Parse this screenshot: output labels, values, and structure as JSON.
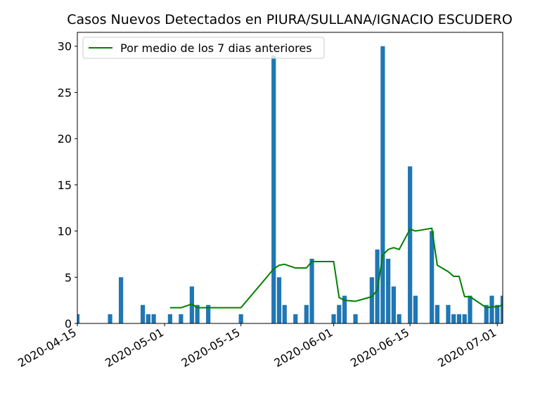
{
  "chart_data": {
    "type": "bar",
    "title": "Casos Nuevos Detectados en PIURA/SULLANA/IGNACIO ESCUDERO",
    "xlabel": "",
    "ylabel": "",
    "x_axis": {
      "type": "date",
      "range": [
        "2020-04-15",
        "2020-07-02"
      ],
      "ticks": [
        "2020-04-15",
        "2020-05-01",
        "2020-05-15",
        "2020-06-01",
        "2020-06-15",
        "2020-07-01"
      ],
      "tick_labels_rotated": true
    },
    "ylim": [
      0,
      31.5
    ],
    "y_ticks": [
      0,
      5,
      10,
      15,
      20,
      25,
      30
    ],
    "grid": false,
    "legend": {
      "placement": "top-left",
      "entries": [
        "Por medio de los 7 dias anteriores"
      ]
    },
    "colors": {
      "bars": "#1f77b4",
      "line": "#008000"
    },
    "series": [
      {
        "type": "bar",
        "x": [
          "2020-04-15",
          "2020-04-21",
          "2020-04-23",
          "2020-04-27",
          "2020-04-28",
          "2020-04-29",
          "2020-05-02",
          "2020-05-04",
          "2020-05-06",
          "2020-05-07",
          "2020-05-09",
          "2020-05-15",
          "2020-05-21",
          "2020-05-22",
          "2020-05-23",
          "2020-05-25",
          "2020-05-27",
          "2020-05-28",
          "2020-06-01",
          "2020-06-02",
          "2020-06-03",
          "2020-06-05",
          "2020-06-08",
          "2020-06-09",
          "2020-06-10",
          "2020-06-11",
          "2020-06-12",
          "2020-06-13",
          "2020-06-15",
          "2020-06-16",
          "2020-06-19",
          "2020-06-20",
          "2020-06-22",
          "2020-06-23",
          "2020-06-24",
          "2020-06-25",
          "2020-06-26",
          "2020-06-29",
          "2020-06-30",
          "2020-07-01",
          "2020-07-02"
        ],
        "values": [
          1,
          1,
          5,
          2,
          1,
          1,
          1,
          1,
          4,
          2,
          2,
          1,
          29,
          5,
          2,
          1,
          2,
          7,
          1,
          2,
          3,
          1,
          5,
          8,
          30,
          7,
          4,
          1,
          17,
          3,
          10,
          2,
          2,
          1,
          1,
          1,
          3,
          2,
          3,
          2,
          3
        ]
      },
      {
        "name": "Por medio de los 7 dias anteriores",
        "type": "line",
        "x": [
          "2020-05-02",
          "2020-05-04",
          "2020-05-06",
          "2020-05-07",
          "2020-05-09",
          "2020-05-15",
          "2020-05-21",
          "2020-05-22",
          "2020-05-23",
          "2020-05-25",
          "2020-05-27",
          "2020-05-28",
          "2020-06-01",
          "2020-06-02",
          "2020-06-03",
          "2020-06-05",
          "2020-06-08",
          "2020-06-09",
          "2020-06-10",
          "2020-06-11",
          "2020-06-12",
          "2020-06-13",
          "2020-06-15",
          "2020-06-16",
          "2020-06-19",
          "2020-06-20",
          "2020-06-22",
          "2020-06-23",
          "2020-06-24",
          "2020-06-25",
          "2020-06-26",
          "2020-06-29",
          "2020-06-30",
          "2020-07-01",
          "2020-07-02"
        ],
        "values": [
          1.7,
          1.7,
          2.1,
          1.7,
          1.7,
          1.7,
          5.9,
          6.3,
          6.4,
          6.0,
          6.0,
          6.7,
          6.7,
          2.8,
          2.5,
          2.4,
          2.9,
          3.6,
          7.4,
          8.0,
          8.2,
          8.0,
          10.2,
          10.0,
          10.3,
          6.3,
          5.6,
          5.1,
          5.1,
          2.9,
          2.9,
          1.7,
          1.8,
          1.8,
          2.0
        ]
      }
    ]
  }
}
